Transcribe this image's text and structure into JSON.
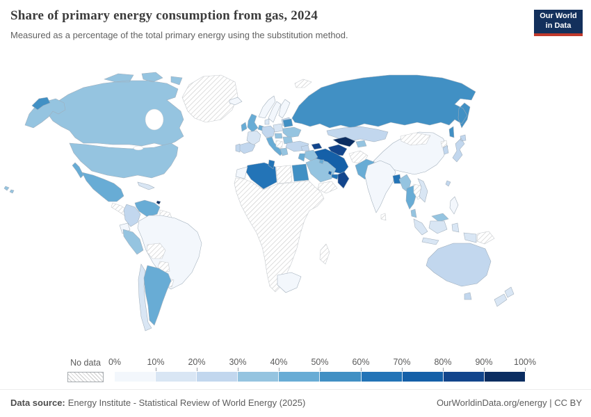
{
  "header": {
    "title": "Share of primary energy consumption from gas, 2024",
    "subtitle": "Measured as a percentage of the total primary energy using the substitution method.",
    "logo": {
      "line1": "Our World",
      "line2": "in Data",
      "background": "#13305c",
      "accent": "#c0392b"
    }
  },
  "legend": {
    "no_data_label": "No data",
    "tick_labels": [
      "0%",
      "10%",
      "20%",
      "30%",
      "40%",
      "50%",
      "60%",
      "70%",
      "80%",
      "90%",
      "100%"
    ],
    "bucket_colors": [
      "#f3f7fc",
      "#d9e6f4",
      "#c2d7ee",
      "#95c4e0",
      "#68acd5",
      "#4190c4",
      "#2374b7",
      "#1560a8",
      "#12458c",
      "#0b2d61"
    ]
  },
  "footer": {
    "source_label": "Data source:",
    "source_text": "Energy Institute - Statistical Review of World Energy (2025)",
    "rights": "OurWorldinData.org/energy | CC BY"
  },
  "chart_data": {
    "type": "heatmap",
    "variant": "world-choropleth",
    "title": "Share of primary energy consumption from gas, 2024",
    "unit": "%",
    "year": 2024,
    "color_scale": {
      "min": 0,
      "max": 100,
      "bucket_size": 10,
      "palette": "blues",
      "no_data": "diagonal-hatch"
    },
    "regions": [
      {
        "name": "United States",
        "value": 36
      },
      {
        "name": "Canada",
        "value": 37
      },
      {
        "name": "Mexico",
        "value": 45
      },
      {
        "name": "Greenland",
        "value": null
      },
      {
        "name": "Central America",
        "value": null
      },
      {
        "name": "Cuba",
        "value": 12
      },
      {
        "name": "Trinidad and Tobago",
        "value": 92
      },
      {
        "name": "Venezuela",
        "value": 47
      },
      {
        "name": "Colombia",
        "value": 24
      },
      {
        "name": "Guyana and Suriname",
        "value": null
      },
      {
        "name": "Ecuador",
        "value": 5
      },
      {
        "name": "Peru",
        "value": 35
      },
      {
        "name": "Brazil",
        "value": 7
      },
      {
        "name": "Bolivia",
        "value": null
      },
      {
        "name": "Paraguay",
        "value": null
      },
      {
        "name": "Uruguay",
        "value": null
      },
      {
        "name": "Argentina",
        "value": 49
      },
      {
        "name": "Chile",
        "value": 13
      },
      {
        "name": "Iceland",
        "value": 1
      },
      {
        "name": "Norway",
        "value": 2
      },
      {
        "name": "Sweden",
        "value": 1
      },
      {
        "name": "Finland",
        "value": 4
      },
      {
        "name": "Svalbard",
        "value": null
      },
      {
        "name": "Baltic states",
        "value": 25
      },
      {
        "name": "United Kingdom",
        "value": 41
      },
      {
        "name": "Ireland",
        "value": 43
      },
      {
        "name": "Denmark",
        "value": 12
      },
      {
        "name": "Netherlands",
        "value": 42
      },
      {
        "name": "Germany",
        "value": 25
      },
      {
        "name": "France",
        "value": 15
      },
      {
        "name": "Spain",
        "value": 21
      },
      {
        "name": "Portugal",
        "value": 24
      },
      {
        "name": "Italy",
        "value": 41
      },
      {
        "name": "Poland",
        "value": 17
      },
      {
        "name": "Hungary",
        "value": 34
      },
      {
        "name": "Balkans",
        "value": null
      },
      {
        "name": "Greece",
        "value": 36
      },
      {
        "name": "Romania",
        "value": 32
      },
      {
        "name": "Belarus",
        "value": 57
      },
      {
        "name": "Ukraine",
        "value": 34
      },
      {
        "name": "Turkey",
        "value": 28
      },
      {
        "name": "Russia",
        "value": 54
      },
      {
        "name": "Kazakhstan",
        "value": 26
      },
      {
        "name": "Azerbaijan",
        "value": 82
      },
      {
        "name": "Turkmenistan",
        "value": 86
      },
      {
        "name": "Uzbekistan",
        "value": 91
      },
      {
        "name": "Kyrgyzstan",
        "value": 35
      },
      {
        "name": "Iran",
        "value": 73
      },
      {
        "name": "Afghanistan",
        "value": null
      },
      {
        "name": "Pakistan",
        "value": 46
      },
      {
        "name": "Iraq",
        "value": 35
      },
      {
        "name": "Syria",
        "value": 25
      },
      {
        "name": "Israel and Jordan",
        "value": 45
      },
      {
        "name": "Saudi Arabia",
        "value": 38
      },
      {
        "name": "Kuwait",
        "value": 48
      },
      {
        "name": "Qatar",
        "value": 77
      },
      {
        "name": "United Arab Emirates",
        "value": 62
      },
      {
        "name": "Oman",
        "value": 84
      },
      {
        "name": "Yemen",
        "value": null
      },
      {
        "name": "Egypt",
        "value": 52
      },
      {
        "name": "Libya",
        "value": null
      },
      {
        "name": "Algeria",
        "value": 64
      },
      {
        "name": "Tunisia",
        "value": 60
      },
      {
        "name": "Morocco",
        "value": 5
      },
      {
        "name": "Sub-Saharan Africa",
        "value": null
      },
      {
        "name": "South Africa",
        "value": 3
      },
      {
        "name": "Madagascar",
        "value": null
      },
      {
        "name": "India",
        "value": 6
      },
      {
        "name": "Sri Lanka",
        "value": null
      },
      {
        "name": "Bangladesh",
        "value": 62
      },
      {
        "name": "China",
        "value": 8
      },
      {
        "name": "Mongolia",
        "value": null
      },
      {
        "name": "Myanmar",
        "value": 33
      },
      {
        "name": "Thailand",
        "value": 47
      },
      {
        "name": "Laos and Cambodia",
        "value": null
      },
      {
        "name": "Vietnam",
        "value": 12
      },
      {
        "name": "Malaysia",
        "value": 36
      },
      {
        "name": "Indonesia",
        "value": 16
      },
      {
        "name": "Philippines",
        "value": 5
      },
      {
        "name": "Papua New Guinea",
        "value": null
      },
      {
        "name": "Taiwan",
        "value": 20
      },
      {
        "name": "South Korea",
        "value": 27
      },
      {
        "name": "North Korea",
        "value": null
      },
      {
        "name": "Japan",
        "value": 21
      },
      {
        "name": "Australia",
        "value": 26
      },
      {
        "name": "New Zealand",
        "value": 15
      }
    ]
  }
}
